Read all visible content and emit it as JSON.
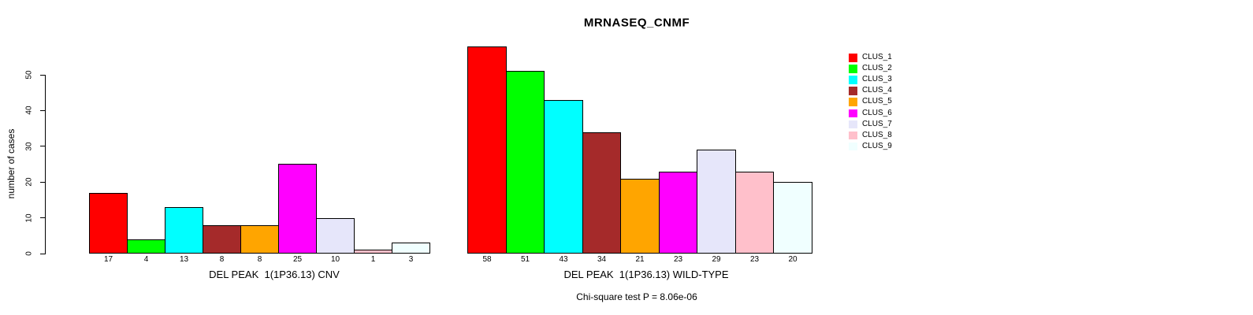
{
  "title": "MRNASEQ_CNMF",
  "note": "Chi-square test P = 8.06e-06",
  "colors": {
    "background": "#FFFFFF",
    "axis": "#000000",
    "bar_border": "#000000",
    "text": "#000000"
  },
  "chart_data": {
    "type": "bar",
    "title": "MRNASEQ_CNMF",
    "ylabel": "number of cases",
    "xlabel": "",
    "ylim": [
      0,
      58
    ],
    "yaxis_range_drawn": [
      0,
      50
    ],
    "yticks": [
      0,
      10,
      20,
      30,
      40,
      50
    ],
    "ytick_labels": [
      "0",
      "10",
      "20",
      "30",
      "40",
      "50"
    ],
    "grid": false,
    "legend_position": "top-right",
    "legend": [
      {
        "label": "CLUS_1",
        "color": "#FF0000",
        "color_name": "red"
      },
      {
        "label": "CLUS_2",
        "color": "#00FF00",
        "color_name": "green"
      },
      {
        "label": "CLUS_3",
        "color": "#00FFFF",
        "color_name": "cyan"
      },
      {
        "label": "CLUS_4",
        "color": "#A52A2A",
        "color_name": "brown"
      },
      {
        "label": "CLUS_5",
        "color": "#FFA500",
        "color_name": "orange"
      },
      {
        "label": "CLUS_6",
        "color": "#FF00FF",
        "color_name": "magenta"
      },
      {
        "label": "CLUS_7",
        "color": "#E6E6FA",
        "color_name": "lavender"
      },
      {
        "label": "CLUS_8",
        "color": "#FFC0CB",
        "color_name": "pink"
      },
      {
        "label": "CLUS_9",
        "color": "#F0FFFF",
        "color_name": "azure"
      }
    ],
    "categories": [
      "CLUS_1",
      "CLUS_2",
      "CLUS_3",
      "CLUS_4",
      "CLUS_5",
      "CLUS_6",
      "CLUS_7",
      "CLUS_8",
      "CLUS_9"
    ],
    "groups": [
      {
        "xlabel": "DEL PEAK  1(1P36.13) CNV",
        "values": [
          17,
          4,
          13,
          8,
          8,
          25,
          10,
          1,
          3
        ],
        "bar_labels": [
          "17",
          "4",
          "13",
          "8",
          "8",
          "25",
          "10",
          "1",
          "3"
        ]
      },
      {
        "xlabel": "DEL PEAK  1(1P36.13) WILD-TYPE",
        "values": [
          58,
          51,
          43,
          34,
          21,
          23,
          29,
          23,
          20
        ],
        "bar_labels": [
          "58",
          "51",
          "43",
          "34",
          "21",
          "23",
          "29",
          "23",
          "20"
        ]
      }
    ],
    "annotation": "Chi-square test P = 8.06e-06"
  }
}
